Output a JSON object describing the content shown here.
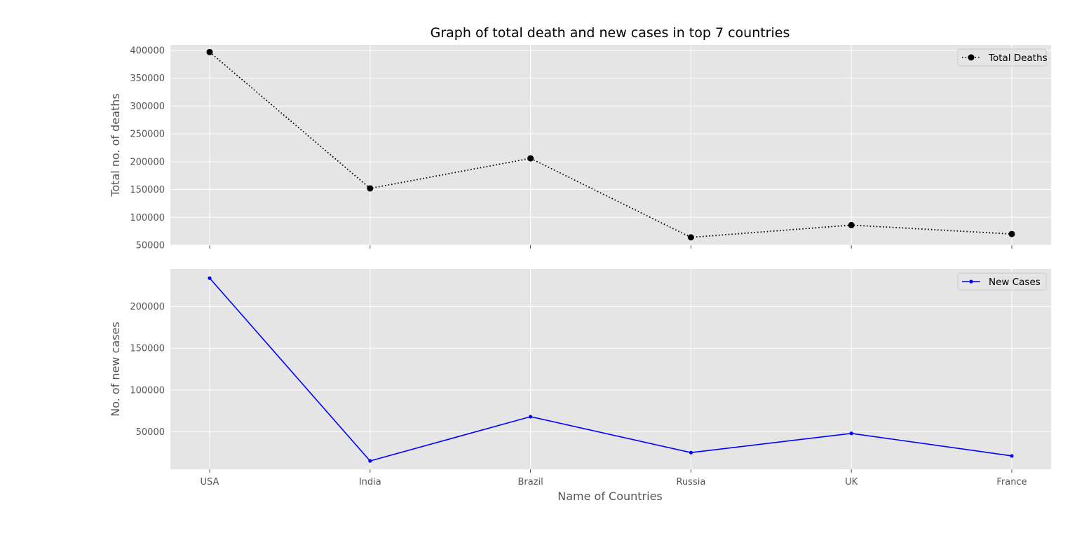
{
  "chart_data": {
    "type": "line",
    "title": "Graph of total death and new cases in top 7 countries",
    "xlabel": "Name of Countries",
    "categories": [
      "USA",
      "India",
      "Brazil",
      "Russia",
      "UK",
      "France"
    ],
    "grid": true,
    "subplots": [
      {
        "ylabel": "Total no. of deaths",
        "ylim": [
          50000,
          410000
        ],
        "yticks": [
          50000,
          100000,
          150000,
          200000,
          250000,
          300000,
          350000,
          400000
        ],
        "legend_placement": "top-right",
        "series": [
          {
            "name": "Total Deaths",
            "color": "#000000",
            "line_style": "dotted",
            "marker": "circle",
            "values": [
              397000,
              152000,
              206000,
              64000,
              86000,
              70000
            ]
          }
        ]
      },
      {
        "ylabel": "No. of new cases",
        "ylim": [
          5000,
          245000
        ],
        "yticks": [
          50000,
          100000,
          150000,
          200000
        ],
        "legend_placement": "top-right",
        "series": [
          {
            "name": "New Cases",
            "color": "#0000ff",
            "line_style": "solid",
            "marker": "dot",
            "values": [
              234000,
              15000,
              68000,
              25000,
              48000,
              21000
            ]
          }
        ]
      }
    ]
  }
}
